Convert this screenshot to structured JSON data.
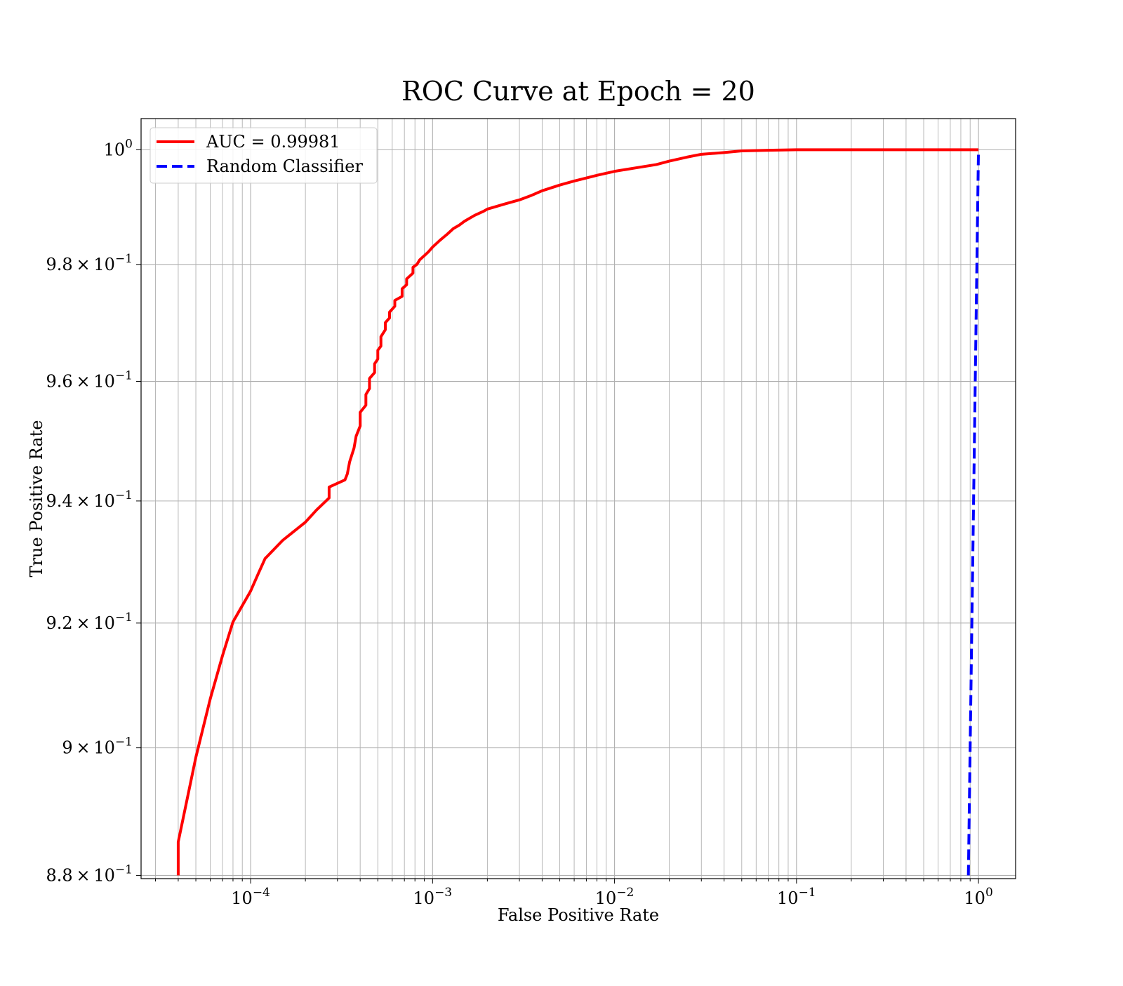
{
  "chart_data": {
    "type": "line",
    "title": "ROC Curve at Epoch = 20",
    "xlabel": "False Positive Rate",
    "ylabel": "True Positive Rate",
    "xscale": "log",
    "yscale": "log",
    "xlim": [
      2.5e-05,
      1.6
    ],
    "ylim": [
      0.8795,
      1.0055
    ],
    "grid": "on (major and minor)",
    "legend_position": "top-left",
    "x_ticks": [
      {
        "value": 0.0001,
        "base": "10",
        "exp": "−4"
      },
      {
        "value": 0.001,
        "base": "10",
        "exp": "−3"
      },
      {
        "value": 0.01,
        "base": "10",
        "exp": "−2"
      },
      {
        "value": 0.1,
        "base": "10",
        "exp": "−1"
      },
      {
        "value": 1,
        "base": "10",
        "exp": "0"
      }
    ],
    "y_ticks": [
      {
        "value": 1.0,
        "mantissa": "",
        "base": "10",
        "exp": "0"
      },
      {
        "value": 0.98,
        "mantissa": "9.8",
        "base": "10",
        "exp": "−1"
      },
      {
        "value": 0.96,
        "mantissa": "9.6",
        "base": "10",
        "exp": "−1"
      },
      {
        "value": 0.94,
        "mantissa": "9.4",
        "base": "10",
        "exp": "−1"
      },
      {
        "value": 0.92,
        "mantissa": "9.2",
        "base": "10",
        "exp": "−1"
      },
      {
        "value": 0.9,
        "mantissa": "9",
        "base": "10",
        "exp": "−1"
      },
      {
        "value": 0.88,
        "mantissa": "8.8",
        "base": "10",
        "exp": "−1"
      }
    ],
    "series": [
      {
        "name": "AUC = 0.99981",
        "color": "#ff0000",
        "style": "solid",
        "x": [
          4e-05,
          4e-05,
          5e-05,
          6e-05,
          7e-05,
          8e-05,
          0.0001,
          0.00011,
          0.00012,
          0.00015,
          0.0002,
          0.00023,
          0.00027,
          0.00027,
          0.00033,
          0.00034,
          0.00035,
          0.00037,
          0.00038,
          0.0004,
          0.0004,
          0.00043,
          0.00043,
          0.00045,
          0.00045,
          0.00048,
          0.00048,
          0.0005,
          0.0005,
          0.00052,
          0.00052,
          0.00055,
          0.00055,
          0.00058,
          0.00058,
          0.00062,
          0.00062,
          0.00068,
          0.00068,
          0.00072,
          0.00072,
          0.00078,
          0.00078,
          0.00082,
          0.00085,
          0.0009,
          0.00095,
          0.001,
          0.0011,
          0.0012,
          0.0013,
          0.0014,
          0.0015,
          0.0017,
          0.0019,
          0.002,
          0.0025,
          0.003,
          0.0035,
          0.004,
          0.005,
          0.006,
          0.008,
          0.01,
          0.013,
          0.017,
          0.02,
          0.025,
          0.03,
          0.04,
          0.05,
          0.07,
          0.1,
          0.15,
          0.2,
          0.3,
          0.5,
          0.7,
          1.0
        ],
        "y": [
          0.88,
          0.8852,
          0.8985,
          0.9078,
          0.9147,
          0.9202,
          0.9252,
          0.928,
          0.9305,
          0.9335,
          0.9365,
          0.9385,
          0.9405,
          0.9423,
          0.9435,
          0.9445,
          0.9465,
          0.9488,
          0.9508,
          0.9525,
          0.9548,
          0.956,
          0.9578,
          0.9588,
          0.9605,
          0.9615,
          0.963,
          0.9638,
          0.9653,
          0.966,
          0.9676,
          0.9688,
          0.97,
          0.9708,
          0.9718,
          0.9728,
          0.9738,
          0.9745,
          0.9758,
          0.9765,
          0.9775,
          0.9785,
          0.9795,
          0.98,
          0.9808,
          0.9815,
          0.9822,
          0.983,
          0.9842,
          0.9852,
          0.9862,
          0.9868,
          0.9875,
          0.9885,
          0.9892,
          0.9896,
          0.9905,
          0.9912,
          0.992,
          0.9928,
          0.9938,
          0.9945,
          0.9955,
          0.9962,
          0.9968,
          0.9974,
          0.998,
          0.9987,
          0.9992,
          0.9995,
          0.9998,
          0.9999,
          1.0,
          1.0,
          1.0,
          1.0,
          1.0,
          1.0,
          1.0
        ]
      },
      {
        "name": "Random Classifier",
        "color": "#0000ff",
        "style": "dashed",
        "x": [
          0.88,
          0.92,
          0.96,
          1.0
        ],
        "y": [
          0.88,
          0.92,
          0.96,
          1.0
        ]
      }
    ]
  }
}
